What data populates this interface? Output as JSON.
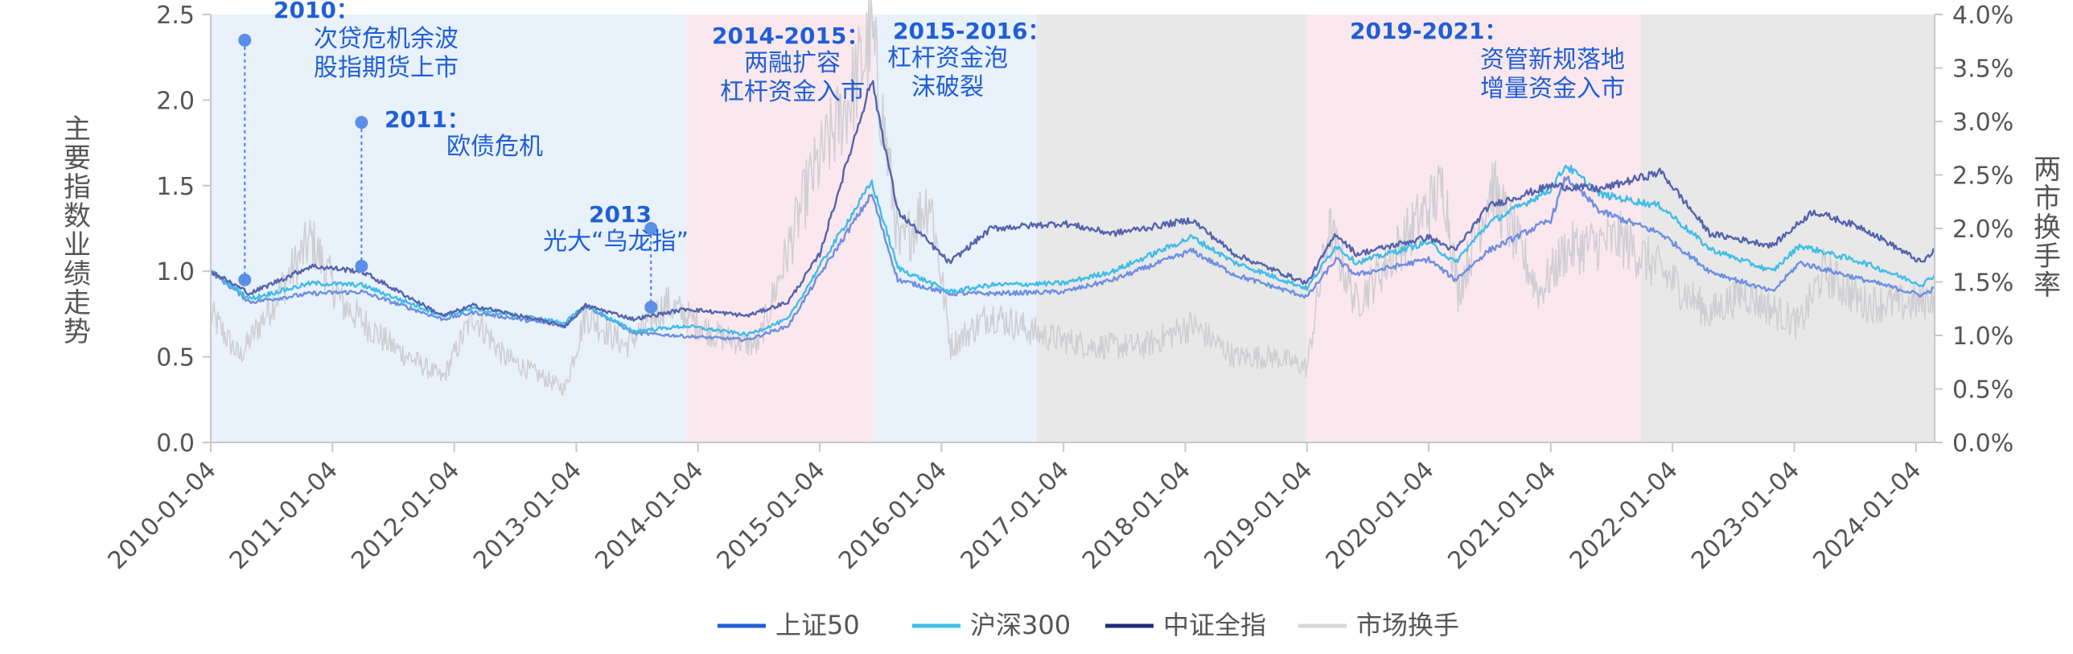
{
  "chart_data": {
    "type": "line",
    "x_range": [
      "2010-01-04",
      "2024-02-29"
    ],
    "x_ticks": [
      "2010-01-04",
      "2011-01-04",
      "2012-01-04",
      "2013-01-04",
      "2014-01-04",
      "2015-01-04",
      "2016-01-04",
      "2017-01-04",
      "2018-01-04",
      "2019-01-04",
      "2020-01-04",
      "2021-01-04",
      "2022-01-04",
      "2023-01-04",
      "2024-01-04"
    ],
    "y_left": {
      "label": "主要指数业绩走势",
      "ylim": [
        0,
        2.5
      ],
      "ticks": [
        "0.0",
        "0.5",
        "1.0",
        "1.5",
        "2.0",
        "2.5"
      ],
      "tick_values": [
        0,
        0.5,
        1.0,
        1.5,
        2.0,
        2.5
      ]
    },
    "y_right": {
      "label": "两市换手率",
      "ylim": [
        0,
        4.0
      ],
      "ticks": [
        "0.0%",
        "0.5%",
        "1.0%",
        "1.5%",
        "2.0%",
        "2.5%",
        "3.0%",
        "3.5%",
        "4.0%"
      ],
      "tick_values": [
        0,
        0.5,
        1.0,
        1.5,
        2.0,
        2.5,
        3.0,
        3.5,
        4.0
      ]
    },
    "grid": false,
    "legend_position": "bottom",
    "series": [
      {
        "name": "上证50",
        "axis": "left",
        "color": "#6e8fe0",
        "points": [
          [
            "2010-01-04",
            1.0
          ],
          [
            "2010-05-01",
            0.82
          ],
          [
            "2010-11-01",
            0.87
          ],
          [
            "2011-04-01",
            0.88
          ],
          [
            "2011-12-01",
            0.72
          ],
          [
            "2012-03-01",
            0.76
          ],
          [
            "2012-12-01",
            0.68
          ],
          [
            "2013-02-01",
            0.8
          ],
          [
            "2013-06-25",
            0.64
          ],
          [
            "2013-12-01",
            0.62
          ],
          [
            "2014-06-01",
            0.6
          ],
          [
            "2014-10-01",
            0.68
          ],
          [
            "2015-01-04",
            0.98
          ],
          [
            "2015-06-09",
            1.45
          ],
          [
            "2015-08-26",
            0.95
          ],
          [
            "2016-01-28",
            0.87
          ],
          [
            "2016-06-01",
            0.87
          ],
          [
            "2017-01-04",
            0.88
          ],
          [
            "2017-06-01",
            0.95
          ],
          [
            "2018-01-24",
            1.12
          ],
          [
            "2018-06-01",
            0.98
          ],
          [
            "2019-01-04",
            0.85
          ],
          [
            "2019-04-01",
            1.07
          ],
          [
            "2019-06-01",
            0.98
          ],
          [
            "2020-01-04",
            1.07
          ],
          [
            "2020-03-23",
            0.95
          ],
          [
            "2020-07-01",
            1.12
          ],
          [
            "2021-01-04",
            1.3
          ],
          [
            "2021-02-18",
            1.55
          ],
          [
            "2021-06-01",
            1.35
          ],
          [
            "2021-12-01",
            1.22
          ],
          [
            "2022-04-26",
            1.0
          ],
          [
            "2022-10-31",
            0.88
          ],
          [
            "2023-01-20",
            1.05
          ],
          [
            "2023-08-01",
            0.95
          ],
          [
            "2024-01-22",
            0.86
          ],
          [
            "2024-02-29",
            0.9
          ]
        ]
      },
      {
        "name": "沪深300",
        "axis": "left",
        "color": "#41bde6",
        "points": [
          [
            "2010-01-04",
            1.0
          ],
          [
            "2010-05-01",
            0.84
          ],
          [
            "2010-11-01",
            0.93
          ],
          [
            "2011-04-01",
            0.92
          ],
          [
            "2011-12-01",
            0.74
          ],
          [
            "2012-03-01",
            0.78
          ],
          [
            "2012-12-01",
            0.7
          ],
          [
            "2013-02-01",
            0.8
          ],
          [
            "2013-06-25",
            0.65
          ],
          [
            "2013-12-01",
            0.68
          ],
          [
            "2014-06-01",
            0.63
          ],
          [
            "2014-10-01",
            0.72
          ],
          [
            "2015-01-04",
            1.03
          ],
          [
            "2015-06-09",
            1.52
          ],
          [
            "2015-08-26",
            1.02
          ],
          [
            "2016-01-28",
            0.88
          ],
          [
            "2016-06-01",
            0.92
          ],
          [
            "2017-01-04",
            0.93
          ],
          [
            "2017-06-01",
            1.0
          ],
          [
            "2018-01-24",
            1.2
          ],
          [
            "2018-06-01",
            1.05
          ],
          [
            "2019-01-04",
            0.9
          ],
          [
            "2019-04-01",
            1.15
          ],
          [
            "2019-06-01",
            1.05
          ],
          [
            "2020-01-04",
            1.17
          ],
          [
            "2020-03-23",
            1.05
          ],
          [
            "2020-07-01",
            1.28
          ],
          [
            "2021-01-04",
            1.48
          ],
          [
            "2021-02-18",
            1.62
          ],
          [
            "2021-06-01",
            1.45
          ],
          [
            "2021-12-01",
            1.38
          ],
          [
            "2022-04-26",
            1.13
          ],
          [
            "2022-10-31",
            1.0
          ],
          [
            "2023-01-20",
            1.15
          ],
          [
            "2023-08-01",
            1.05
          ],
          [
            "2024-01-22",
            0.92
          ],
          [
            "2024-02-29",
            0.98
          ]
        ]
      },
      {
        "name": "中证全指",
        "axis": "left",
        "color": "#5563ad",
        "points": [
          [
            "2010-01-04",
            1.0
          ],
          [
            "2010-05-01",
            0.87
          ],
          [
            "2010-11-01",
            1.03
          ],
          [
            "2011-04-01",
            1.0
          ],
          [
            "2011-12-01",
            0.74
          ],
          [
            "2012-03-01",
            0.8
          ],
          [
            "2012-12-01",
            0.68
          ],
          [
            "2013-02-01",
            0.8
          ],
          [
            "2013-06-25",
            0.72
          ],
          [
            "2013-12-01",
            0.78
          ],
          [
            "2014-06-01",
            0.74
          ],
          [
            "2014-10-01",
            0.82
          ],
          [
            "2015-01-04",
            1.1
          ],
          [
            "2015-06-09",
            2.12
          ],
          [
            "2015-08-26",
            1.35
          ],
          [
            "2016-01-28",
            1.05
          ],
          [
            "2016-06-01",
            1.25
          ],
          [
            "2017-01-04",
            1.28
          ],
          [
            "2017-06-01",
            1.22
          ],
          [
            "2018-01-24",
            1.3
          ],
          [
            "2018-06-01",
            1.1
          ],
          [
            "2019-01-04",
            0.93
          ],
          [
            "2019-04-01",
            1.22
          ],
          [
            "2019-06-01",
            1.1
          ],
          [
            "2020-01-04",
            1.2
          ],
          [
            "2020-03-23",
            1.12
          ],
          [
            "2020-07-01",
            1.38
          ],
          [
            "2021-01-04",
            1.5
          ],
          [
            "2021-06-01",
            1.48
          ],
          [
            "2021-12-01",
            1.58
          ],
          [
            "2022-04-26",
            1.22
          ],
          [
            "2022-10-31",
            1.15
          ],
          [
            "2023-03-01",
            1.35
          ],
          [
            "2023-08-01",
            1.25
          ],
          [
            "2024-01-22",
            1.05
          ],
          [
            "2024-02-29",
            1.12
          ]
        ]
      },
      {
        "name": "市场换手",
        "axis": "right",
        "color": "#cfcfd3",
        "points": [
          [
            "2010-01-04",
            1.2
          ],
          [
            "2010-04-01",
            0.8
          ],
          [
            "2010-11-01",
            1.9
          ],
          [
            "2011-02-01",
            1.3
          ],
          [
            "2011-07-01",
            0.9
          ],
          [
            "2011-12-01",
            0.6
          ],
          [
            "2012-03-01",
            1.2
          ],
          [
            "2012-06-01",
            0.8
          ],
          [
            "2012-12-01",
            0.5
          ],
          [
            "2013-02-01",
            1.2
          ],
          [
            "2013-06-01",
            0.9
          ],
          [
            "2013-10-01",
            1.3
          ],
          [
            "2014-03-01",
            1.0
          ],
          [
            "2014-07-01",
            0.9
          ],
          [
            "2014-12-01",
            2.4
          ],
          [
            "2015-04-01",
            3.2
          ],
          [
            "2015-06-09",
            3.8
          ],
          [
            "2015-09-01",
            1.8
          ],
          [
            "2015-12-01",
            2.3
          ],
          [
            "2016-02-01",
            0.9
          ],
          [
            "2016-06-01",
            1.2
          ],
          [
            "2016-11-01",
            1.0
          ],
          [
            "2017-04-01",
            0.9
          ],
          [
            "2017-09-01",
            0.9
          ],
          [
            "2018-01-24",
            1.1
          ],
          [
            "2018-06-01",
            0.8
          ],
          [
            "2018-10-01",
            0.8
          ],
          [
            "2019-01-04",
            0.7
          ],
          [
            "2019-03-10",
            2.0
          ],
          [
            "2019-06-01",
            1.3
          ],
          [
            "2020-02-20",
            2.4
          ],
          [
            "2020-04-01",
            1.4
          ],
          [
            "2020-07-10",
            2.4
          ],
          [
            "2020-12-01",
            1.4
          ],
          [
            "2021-02-18",
            1.8
          ],
          [
            "2021-08-01",
            1.9
          ],
          [
            "2021-12-01",
            1.6
          ],
          [
            "2022-04-26",
            1.2
          ],
          [
            "2022-08-01",
            1.4
          ],
          [
            "2023-01-20",
            1.1
          ],
          [
            "2023-04-01",
            1.6
          ],
          [
            "2023-08-01",
            1.3
          ],
          [
            "2024-01-22",
            1.3
          ],
          [
            "2024-02-29",
            1.4
          ]
        ]
      }
    ],
    "shaded_periods": [
      {
        "start": "2010-01-04",
        "end": "2013-12-01",
        "color": "#e9f1fb"
      },
      {
        "start": "2013-12-01",
        "end": "2015-06-15",
        "color": "#fbe8ee"
      },
      {
        "start": "2015-06-15",
        "end": "2016-10-15",
        "color": "#e9f1fb"
      },
      {
        "start": "2016-10-15",
        "end": "2019-01-04",
        "color": "#e8e8e8"
      },
      {
        "start": "2019-01-04",
        "end": "2021-10-01",
        "color": "#fbe8ee"
      },
      {
        "start": "2021-10-01",
        "end": "2024-02-29",
        "color": "#e8e8e8"
      }
    ],
    "annotations": [
      {
        "title": "2010：",
        "lines": [
          "次贷危机余波",
          "股指期货上市"
        ]
      },
      {
        "title": "2011：",
        "lines": [
          "欧债危机"
        ]
      },
      {
        "title": "2013",
        "lines": [
          "光大“乌龙指”"
        ]
      },
      {
        "title": "2014-2015：",
        "lines": [
          "两融扩容",
          "杠杆资金入市"
        ]
      },
      {
        "title": "2015-2016：",
        "lines": [
          "杠杆资金泡",
          "沫破裂"
        ]
      },
      {
        "title": "2019-2021：",
        "lines": [
          "资管新规落地",
          "增量资金入市"
        ]
      }
    ],
    "event_markers": [
      {
        "date": "2010-04-16",
        "value_top": 2.35,
        "value_bottom": 0.95
      },
      {
        "date": "2011-04-01",
        "value_top": 1.87,
        "value_bottom": 1.03
      },
      {
        "date": "2013-08-16",
        "value_top": 1.25,
        "value_bottom": 0.79
      }
    ]
  },
  "legend_items": [
    {
      "label": "上证50",
      "color": "#1f5fd6"
    },
    {
      "label": "沪深300",
      "color": "#3fc0ea"
    },
    {
      "label": "中证全指",
      "color": "#1d2f7a"
    },
    {
      "label": "市场换手",
      "color": "#d8d8da"
    }
  ]
}
